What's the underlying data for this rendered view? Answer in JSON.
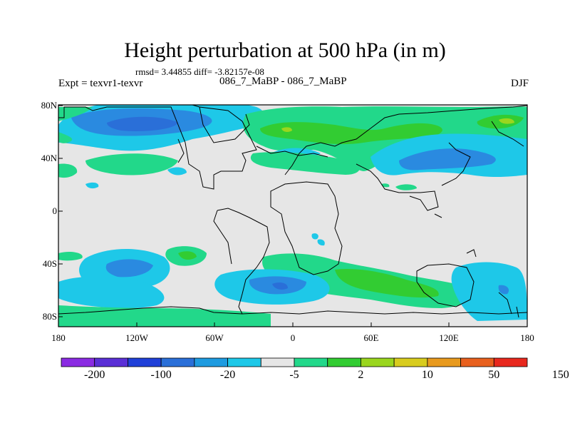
{
  "title": "Height perturbation at 500 hPa (in m)",
  "stats": "rmsd= 3.44855 diff= -3.82157e-08",
  "experiment": "Expt = texvr1-texvr",
  "period": "086_7_MaBP - 086_7_MaBP",
  "season": "DJF",
  "lon_ticks": [
    "180",
    "120W",
    "60W",
    "0",
    "60E",
    "120E",
    "180"
  ],
  "lat_ticks": [
    "80N",
    "40N",
    "0",
    "40S",
    "80S"
  ],
  "colorbar": {
    "labels": [
      "-200",
      "-100",
      "-20",
      "-5",
      "2",
      "10",
      "50",
      "150"
    ],
    "colors": [
      "#8a2be2",
      "#5a2fd6",
      "#2040d8",
      "#2a6fd8",
      "#1e9be0",
      "#1ec8e8",
      "#e6e6e6",
      "#22d88a",
      "#32cc32",
      "#9ad61e",
      "#d8cc1e",
      "#e89a1e",
      "#e8601e",
      "#e8281e"
    ]
  },
  "colors": {
    "background_field": "#e6e6e6",
    "coast": "#000000"
  }
}
